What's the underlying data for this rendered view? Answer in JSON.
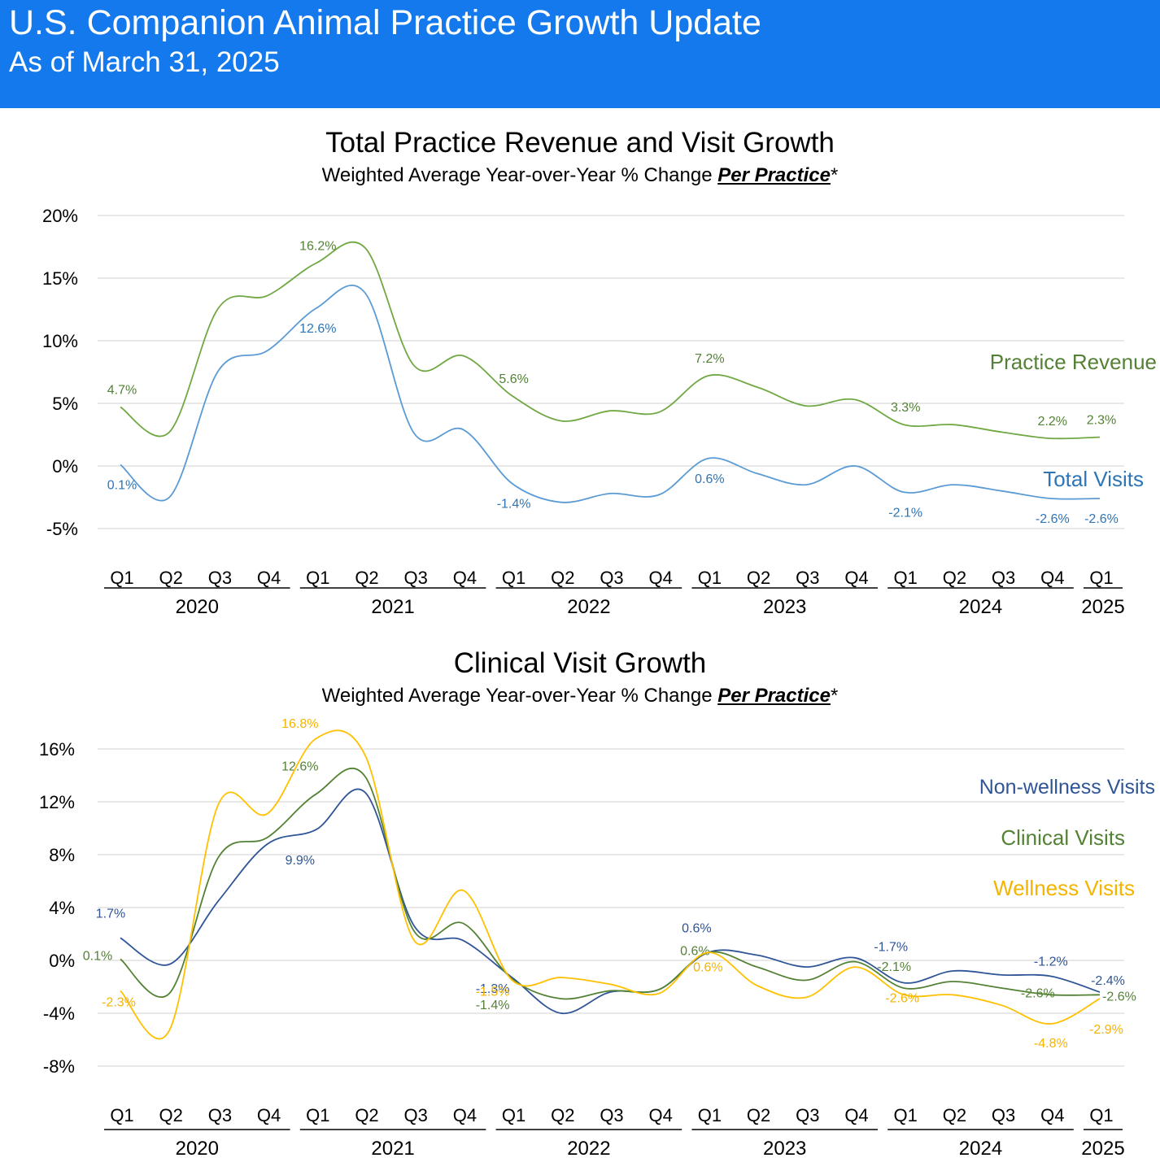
{
  "header": {
    "title": "U.S. Companion Animal Practice Growth Update",
    "subtitle": "As of March 31, 2025",
    "accent": "#1479ed"
  },
  "chart_data": [
    {
      "type": "line",
      "title": "Total Practice Revenue and Visit Growth",
      "subtitle_prefix": "Weighted Average Year-over-Year % Change ",
      "subtitle_emphasis": "Per Practice",
      "subtitle_suffix": "*",
      "xlabel": "",
      "ylabel": "",
      "ylim": [
        -5,
        20
      ],
      "y_ticks": [
        20,
        15,
        10,
        5,
        0,
        -5
      ],
      "y_tick_labels": [
        "20%",
        "15%",
        "10%",
        "5%",
        "0%",
        "-5%"
      ],
      "grid": true,
      "legend": "right, inline series labels",
      "categories": [
        "Q1",
        "Q2",
        "Q3",
        "Q4",
        "Q1",
        "Q2",
        "Q3",
        "Q4",
        "Q1",
        "Q2",
        "Q3",
        "Q4",
        "Q1",
        "Q2",
        "Q3",
        "Q4",
        "Q1",
        "Q2",
        "Q3",
        "Q4",
        "Q1"
      ],
      "years": [
        {
          "label": "2020",
          "start": 0,
          "end": 3
        },
        {
          "label": "2021",
          "start": 4,
          "end": 7
        },
        {
          "label": "2022",
          "start": 8,
          "end": 11
        },
        {
          "label": "2023",
          "start": 12,
          "end": 15
        },
        {
          "label": "2024",
          "start": 16,
          "end": 19
        },
        {
          "label": "2025",
          "start": 20,
          "end": 20
        }
      ],
      "series": [
        {
          "name": "Practice Revenue",
          "color": "#70a844",
          "label_color": "#538135",
          "values": [
            4.7,
            2.7,
            12.6,
            13.6,
            16.2,
            17.4,
            8.0,
            8.8,
            5.6,
            3.6,
            4.4,
            4.3,
            7.2,
            6.3,
            4.8,
            5.3,
            3.3,
            3.3,
            2.7,
            2.2,
            2.3
          ],
          "labels": [
            {
              "i": 0,
              "text": "4.7%",
              "pos": "above"
            },
            {
              "i": 4,
              "text": "16.2%",
              "pos": "above"
            },
            {
              "i": 8,
              "text": "5.6%",
              "pos": "above"
            },
            {
              "i": 12,
              "text": "7.2%",
              "pos": "above"
            },
            {
              "i": 16,
              "text": "3.3%",
              "pos": "above"
            },
            {
              "i": 19,
              "text": "2.2%",
              "pos": "above"
            },
            {
              "i": 20,
              "text": "2.3%",
              "pos": "above"
            }
          ]
        },
        {
          "name": "Total Visits",
          "color": "#5b9bd5",
          "label_color": "#2e75b6",
          "values": [
            0.1,
            -2.5,
            7.6,
            9.2,
            12.6,
            13.8,
            2.6,
            2.9,
            -1.4,
            -2.9,
            -2.2,
            -2.3,
            0.6,
            -0.6,
            -1.5,
            0.0,
            -2.1,
            -1.5,
            -2.0,
            -2.6,
            -2.6
          ],
          "labels": [
            {
              "i": 0,
              "text": "0.1%",
              "pos": "below"
            },
            {
              "i": 4,
              "text": "12.6%",
              "pos": "below"
            },
            {
              "i": 8,
              "text": "-1.4%",
              "pos": "below"
            },
            {
              "i": 12,
              "text": "0.6%",
              "pos": "below"
            },
            {
              "i": 16,
              "text": "-2.1%",
              "pos": "below"
            },
            {
              "i": 19,
              "text": "-2.6%",
              "pos": "below"
            },
            {
              "i": 20,
              "text": "-2.6%",
              "pos": "below"
            }
          ]
        }
      ]
    },
    {
      "type": "line",
      "title": "Clinical Visit Growth",
      "subtitle_prefix": "Weighted Average Year-over-Year % Change ",
      "subtitle_emphasis": "Per Practice",
      "subtitle_suffix": "*",
      "xlabel": "",
      "ylabel": "",
      "ylim": [
        -8,
        16
      ],
      "y_ticks": [
        16,
        12,
        8,
        4,
        0,
        -4,
        -8
      ],
      "y_tick_labels": [
        "16%",
        "12%",
        "8%",
        "4%",
        "0%",
        "-4%",
        "-8%"
      ],
      "grid": true,
      "legend": "right, inline series labels",
      "categories": [
        "Q1",
        "Q2",
        "Q3",
        "Q4",
        "Q1",
        "Q2",
        "Q3",
        "Q4",
        "Q1",
        "Q2",
        "Q3",
        "Q4",
        "Q1",
        "Q2",
        "Q3",
        "Q4",
        "Q1",
        "Q2",
        "Q3",
        "Q4",
        "Q1"
      ],
      "years": [
        {
          "label": "2020",
          "start": 0,
          "end": 3
        },
        {
          "label": "2021",
          "start": 4,
          "end": 7
        },
        {
          "label": "2022",
          "start": 8,
          "end": 11
        },
        {
          "label": "2023",
          "start": 12,
          "end": 15
        },
        {
          "label": "2024",
          "start": 16,
          "end": 19
        },
        {
          "label": "2025",
          "start": 20,
          "end": 20
        }
      ],
      "series": [
        {
          "name": "Non-wellness Visits",
          "color": "#2f5597",
          "label_color": "#2f5597",
          "values": [
            1.7,
            -0.3,
            4.5,
            8.8,
            9.9,
            12.7,
            2.6,
            1.5,
            -1.3,
            -4.0,
            -2.4,
            -2.2,
            0.6,
            0.4,
            -0.5,
            0.2,
            -1.7,
            -0.8,
            -1.1,
            -1.2,
            -2.4
          ],
          "labels": [
            {
              "i": 0,
              "text": "1.7%",
              "dx": -12,
              "dy": -30
            },
            {
              "i": 4,
              "text": "9.9%",
              "dx": -20,
              "dy": 38
            },
            {
              "i": 8,
              "text": "-1.3%",
              "dx": -24,
              "dy": 14
            },
            {
              "i": 12,
              "text": "0.6%",
              "dx": -14,
              "dy": -30
            },
            {
              "i": 16,
              "text": "-1.7%",
              "dx": -16,
              "dy": -44
            },
            {
              "i": 19,
              "text": "-1.2%",
              "dx": 0,
              "dy": -18
            },
            {
              "i": 20,
              "text": "-2.4%",
              "dx": 10,
              "dy": -14
            }
          ]
        },
        {
          "name": "Clinical Visits",
          "color": "#548235",
          "label_color": "#548235",
          "values": [
            0.1,
            -2.5,
            7.8,
            9.3,
            12.6,
            13.9,
            2.2,
            2.8,
            -1.4,
            -2.9,
            -2.3,
            -2.2,
            0.6,
            -0.5,
            -1.5,
            -0.1,
            -2.1,
            -1.6,
            -2.1,
            -2.6,
            -2.6
          ],
          "labels": [
            {
              "i": 0,
              "text": "0.1%",
              "dx": -28,
              "dy": -4
            },
            {
              "i": 4,
              "text": "12.6%",
              "dx": -20,
              "dy": -34
            },
            {
              "i": 8,
              "text": "-1.4%",
              "dx": -24,
              "dy": 32
            },
            {
              "i": 12,
              "text": "0.6%",
              "dx": -16,
              "dy": -2
            },
            {
              "i": 16,
              "text": "-2.1%",
              "dx": -12,
              "dy": -26
            },
            {
              "i": 19,
              "text": "-2.6%",
              "dx": -16,
              "dy": -2
            },
            {
              "i": 20,
              "text": "-2.6%",
              "dx": 24,
              "dy": 2
            }
          ]
        },
        {
          "name": "Wellness Visits",
          "color": "#ffc000",
          "label_color": "#f4b400",
          "values": [
            -2.3,
            -5.3,
            11.8,
            11.1,
            16.8,
            15.5,
            1.5,
            5.3,
            -1.5,
            -1.3,
            -1.8,
            -2.5,
            0.6,
            -1.9,
            -2.8,
            -0.5,
            -2.6,
            -2.6,
            -3.4,
            -4.8,
            -2.9
          ],
          "labels": [
            {
              "i": 0,
              "text": "-2.3%",
              "dx": -2,
              "dy": 14
            },
            {
              "i": 4,
              "text": "16.8%",
              "dx": -20,
              "dy": -18
            },
            {
              "i": 8,
              "text": "-1.5%",
              "dx": -24,
              "dy": 14
            },
            {
              "i": 12,
              "text": "0.6%",
              "dx": 0,
              "dy": 18
            },
            {
              "i": 16,
              "text": "-2.6%",
              "dx": -2,
              "dy": 4
            },
            {
              "i": 19,
              "text": "-4.8%",
              "dx": 0,
              "dy": 24
            },
            {
              "i": 20,
              "text": "-2.9%",
              "dx": 8,
              "dy": 38
            }
          ]
        }
      ]
    }
  ]
}
